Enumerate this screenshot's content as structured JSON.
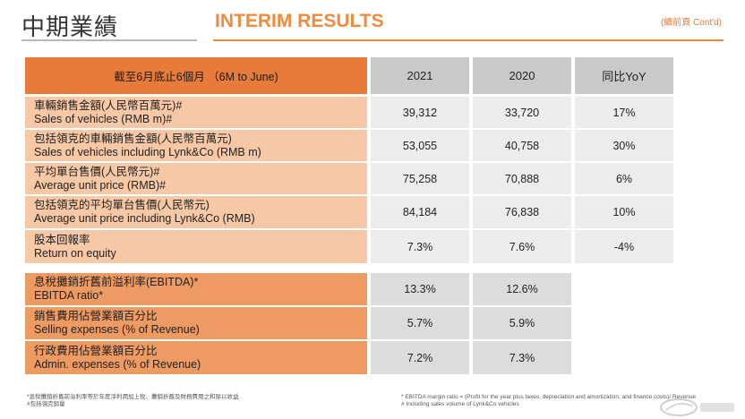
{
  "header": {
    "title_zh": "中期業績",
    "title_en": "INTERIM RESULTS",
    "contd": "(續前頁 Cont'd)"
  },
  "table": {
    "head": {
      "label": "截至6月底止6個月 （6M to June)",
      "col_2021": "2021",
      "col_2020": "2020",
      "col_yoy": "同比YoY"
    },
    "rows": [
      {
        "zh": "車輛銷售金額(人民幣百萬元)#",
        "en": "Sales of vehicles (RMB m)#",
        "v2021": "39,312",
        "v2020": "33,720",
        "yoy": "17%"
      },
      {
        "zh": "包括領克的車輛銷售金額(人民幣百萬元)",
        "en": "Sales of vehicles including Lynk&Co (RMB m)",
        "v2021": "53,055",
        "v2020": "40,758",
        "yoy": "30%"
      },
      {
        "zh": "平均單台售價(人民幣元)#",
        "en": "Average unit price (RMB)#",
        "v2021": "75,258",
        "v2020": "70,888",
        "yoy": "6%"
      },
      {
        "zh": "包括領克的平均單台售價(人民幣元)",
        "en": "Average unit price including Lynk&Co (RMB)",
        "v2021": "84,184",
        "v2020": "76,838",
        "yoy": "10%"
      },
      {
        "zh": "股本回報率",
        "en": "Return on equity",
        "v2021": "7.3%",
        "v2020": "7.6%",
        "yoy": "-4%"
      }
    ],
    "rows_b": [
      {
        "zh": "息稅攤銷折舊前溢利率(EBITDA)*",
        "en": "EBITDA ratio*",
        "v2021": "13.3%",
        "v2020": "12.6%"
      },
      {
        "zh": "銷售費用佔營業額百分比",
        "en": "Selling expenses (% of Revenue)",
        "v2021": "5.7%",
        "v2020": "5.9%"
      },
      {
        "zh": "行政費用佔營業額百分比",
        "en": "Admin. expenses (% of Revenue)",
        "v2021": "7.2%",
        "v2020": "7.3%"
      }
    ]
  },
  "footnotes": {
    "left_1": "*息稅攤銷折舊前溢利率等於年度淨利潤加上稅、攤銷折舊及財務費用之和除以收益",
    "left_2": "#包括領克銷量",
    "right_1": "* EBITDA margin ratio = (Profit for the year plus taxes, depreciation and amortization, and finance costs)/ Revenue",
    "right_2": "# Including sales volume of Lynk&Co vehicles"
  },
  "colors": {
    "accent_orange": "#f08a3c",
    "header_orange": "#e87a3a",
    "row_light_orange": "#f7c8a6",
    "row_dark_orange": "#ee9a63",
    "header_gray": "#c9c9c9",
    "cell_light_gray": "#ececec",
    "cell_dark_gray": "#dcdcdc"
  }
}
